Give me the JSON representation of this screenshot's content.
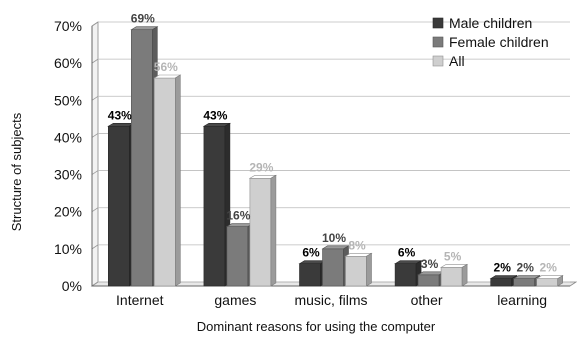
{
  "chart_data": {
    "type": "bar",
    "title": "",
    "xlabel": "Dominant reasons for using the computer",
    "ylabel": "Structure of subjects",
    "ylim": [
      0,
      70
    ],
    "yticks": [
      "0%",
      "10%",
      "20%",
      "30%",
      "40%",
      "50%",
      "60%",
      "70%"
    ],
    "categories": [
      "Internet",
      "games",
      "music, films",
      "other",
      "learning"
    ],
    "series": [
      {
        "name": "Male children",
        "values": [
          43,
          43,
          6,
          6,
          2
        ],
        "labels": [
          "43%",
          "43%",
          "6%",
          "6%",
          "2%"
        ],
        "color": "#3a3a3a",
        "label_color": "#000000"
      },
      {
        "name": "Female children",
        "values": [
          69,
          16,
          10,
          3,
          2
        ],
        "labels": [
          "69%",
          "16%",
          "10%",
          "3%",
          "2%"
        ],
        "color": "#7b7b7b",
        "label_color": "#444444"
      },
      {
        "name": "All",
        "values": [
          56,
          29,
          8,
          5,
          2
        ],
        "labels": [
          "56%",
          "29%",
          "8%",
          "5%",
          "2%"
        ],
        "color": "#cfcfcf",
        "label_color": "#b5b5b5"
      }
    ],
    "grid": true,
    "legend_position": "top-right"
  }
}
